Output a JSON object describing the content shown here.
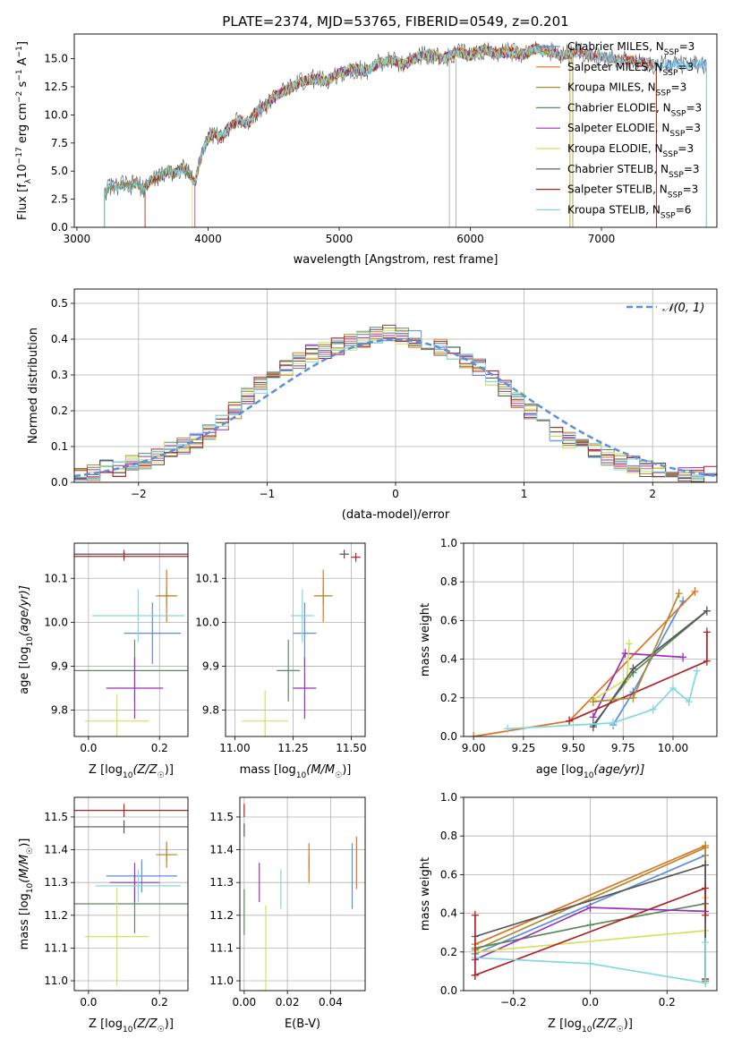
{
  "title": "PLATE=2374, MJD=53765, FIBERID=0549, z=0.201",
  "models": [
    {
      "name": "Chabrier MILES, N",
      "sub": "SSP",
      "tail": "=3",
      "color": "#5b8ede"
    },
    {
      "name": "Salpeter MILES, N",
      "sub": "SSP",
      "tail": "=3",
      "color": "#e1711d"
    },
    {
      "name": "Kroupa MILES, N",
      "sub": "SSP",
      "tail": "=3",
      "color": "#b08a2e"
    },
    {
      "name": "Chabrier ELODIE, N",
      "sub": "SSP",
      "tail": "=3",
      "color": "#5a8a5a"
    },
    {
      "name": "Salpeter ELODIE, N",
      "sub": "SSP",
      "tail": "=3",
      "color": "#9b30b8"
    },
    {
      "name": "Kroupa ELODIE, N",
      "sub": "SSP",
      "tail": "=3",
      "color": "#d4e157"
    },
    {
      "name": "Chabrier STELIB, N",
      "sub": "SSP",
      "tail": "=3",
      "color": "#555555"
    },
    {
      "name": "Salpeter STELIB, N",
      "sub": "SSP",
      "tail": "=3",
      "color": "#b22222"
    },
    {
      "name": "Kroupa STELIB, N",
      "sub": "SSP",
      "tail": "=6",
      "color": "#80d8e0"
    }
  ],
  "chart_data": [
    {
      "id": "spectrum",
      "type": "line",
      "xlabel": "wavelength [Angstrom, rest frame]",
      "ylabel_main": "Flux [f",
      "ylabel_sub": "λ",
      "ylabel_rest": "10",
      "ylabel_sup1": "−17",
      "ylabel_mid": " erg cm",
      "ylabel_sup2": "−2",
      "ylabel_mid2": " s",
      "ylabel_sup3": "−1",
      "ylabel_mid3": " A",
      "ylabel_sup4": "−1",
      "ylabel_end": "]",
      "xlim": [
        2980,
        7880
      ],
      "ylim": [
        0,
        17.2
      ],
      "xticks": [
        3000,
        4000,
        5000,
        6000,
        7000
      ],
      "yticks": [
        0.0,
        2.5,
        5.0,
        7.5,
        10.0,
        12.5,
        15.0
      ],
      "ytick_labels": [
        "0.0",
        "2.5",
        "5.0",
        "7.5",
        "10.0",
        "12.5",
        "15.0"
      ],
      "x": [
        3210,
        3250,
        3300,
        3350,
        3400,
        3450,
        3500,
        3550,
        3600,
        3650,
        3700,
        3750,
        3800,
        3850,
        3900,
        3950,
        4000,
        4050,
        4100,
        4150,
        4200,
        4250,
        4300,
        4350,
        4400,
        4450,
        4500,
        4600,
        4700,
        4800,
        4900,
        5000,
        5100,
        5200,
        5300,
        5400,
        5500,
        5600,
        5700,
        5800,
        5900,
        6000,
        6100,
        6200,
        6300,
        6400,
        6500,
        6600,
        6700,
        6800,
        6900,
        7000,
        7100,
        7200,
        7300,
        7400
      ],
      "y": [
        3.0,
        3.7,
        3.6,
        3.9,
        3.5,
        4.0,
        3.4,
        4.0,
        4.4,
        4.6,
        5.1,
        4.8,
        5.3,
        4.9,
        4.0,
        6.5,
        8.0,
        8.4,
        7.9,
        8.9,
        9.2,
        9.6,
        9.1,
        10.1,
        10.6,
        10.9,
        11.6,
        12.2,
        12.9,
        13.2,
        13.0,
        13.7,
        14.1,
        13.9,
        14.6,
        14.9,
        14.5,
        15.2,
        15.4,
        15.0,
        15.6,
        15.3,
        15.8,
        15.5,
        15.6,
        15.4,
        15.9,
        15.7,
        15.3,
        15.6,
        15.4,
        15.2,
        15.0,
        14.9,
        14.7,
        14.5
      ],
      "starts": [
        3210,
        3210,
        3520,
        3210,
        3900,
        3880,
        3210,
        3520,
        3210
      ],
      "ends": [
        7800,
        7420,
        6760,
        6780,
        6780,
        6780,
        7800,
        7420,
        7800
      ]
    },
    {
      "id": "residuals",
      "type": "bar",
      "xlabel": "(data-model)/error",
      "ylabel": "Normed distribution",
      "legend_label": "𝒩(0, 1)",
      "xlim": [
        -2.5,
        2.5
      ],
      "ylim": [
        0,
        0.54
      ],
      "xticks": [
        -2,
        -1,
        0,
        1,
        2
      ],
      "xtick_labels": [
        "−2",
        "−1",
        "0",
        "1",
        "2"
      ],
      "yticks": [
        0.0,
        0.1,
        0.2,
        0.3,
        0.4,
        0.5
      ],
      "ytick_labels": [
        "0.0",
        "0.1",
        "0.2",
        "0.3",
        "0.4",
        "0.5"
      ],
      "bin_width": 0.1,
      "values": [
        0.02,
        0.03,
        0.04,
        0.04,
        0.05,
        0.06,
        0.07,
        0.09,
        0.1,
        0.12,
        0.14,
        0.17,
        0.2,
        0.24,
        0.27,
        0.29,
        0.32,
        0.34,
        0.36,
        0.37,
        0.38,
        0.39,
        0.4,
        0.41,
        0.42,
        0.41,
        0.4,
        0.39,
        0.38,
        0.36,
        0.34,
        0.32,
        0.29,
        0.26,
        0.23,
        0.2,
        0.17,
        0.14,
        0.12,
        0.1,
        0.09,
        0.07,
        0.06,
        0.05,
        0.04,
        0.03,
        0.03,
        0.02,
        0.02,
        0.02
      ]
    },
    {
      "id": "age_vs_Z",
      "type": "scatter",
      "xlabel_main": "Z [log",
      "xlabel_sub": "10",
      "xlabel_end": "(Z/Z",
      "xlabel_sun_sub": "☉",
      "xlabel_close": ")]",
      "ylabel_main": "age  [log",
      "ylabel_sub": "10",
      "ylabel_end": "(age/yr)]",
      "xlim": [
        -0.04,
        0.28
      ],
      "ylim": [
        9.74,
        10.18
      ],
      "xticks": [
        0.0,
        0.2
      ],
      "xtick_labels": [
        "0.0",
        "0.2"
      ],
      "yticks": [
        9.8,
        9.9,
        10.0,
        10.1
      ],
      "ytick_labels": [
        "9.8",
        "9.9",
        "10.0",
        "10.1"
      ],
      "points": [
        {
          "m": 0,
          "x": 0.18,
          "y": 9.975,
          "xerr": 0.08,
          "yerr": 0.07
        },
        {
          "m": 1,
          "x": 0.22,
          "y": 10.06,
          "xerr": 0.03,
          "yerr": 0.06
        },
        {
          "m": 2,
          "x": 0.22,
          "y": 10.06,
          "xerr": 0.02,
          "yerr": 0.02
        },
        {
          "m": 3,
          "x": 0.13,
          "y": 9.89,
          "xerr": 0.2,
          "yerr": 0.07
        },
        {
          "m": 4,
          "x": 0.13,
          "y": 9.85,
          "xerr": 0.08,
          "yerr": 0.07
        },
        {
          "m": 5,
          "x": 0.08,
          "y": 9.775,
          "xerr": 0.09,
          "yerr": 0.06
        },
        {
          "m": 6,
          "x": 0.1,
          "y": 10.155,
          "xerr": 0.21,
          "yerr": 0.01
        },
        {
          "m": 7,
          "x": 0.1,
          "y": 10.15,
          "xerr": 0.2,
          "yerr": 0.01
        },
        {
          "m": 8,
          "x": 0.14,
          "y": 10.015,
          "xerr": 0.13,
          "yerr": 0.06
        }
      ]
    },
    {
      "id": "age_vs_mass",
      "type": "scatter",
      "xlabel_main": "mass [log",
      "xlabel_sub": "10",
      "xlabel_end": "(M/M",
      "xlabel_sun_sub": "☉",
      "xlabel_close": ")]",
      "xlim": [
        10.96,
        11.56
      ],
      "ylim": [
        9.74,
        10.18
      ],
      "xticks": [
        11.0,
        11.25,
        11.5
      ],
      "xtick_labels": [
        "11.00",
        "11.25",
        "11.50"
      ],
      "yticks": [
        9.8,
        9.9,
        10.0,
        10.1
      ],
      "ytick_labels": [
        "9.8",
        "9.9",
        "10.0",
        "10.1"
      ],
      "points": [
        {
          "m": 0,
          "x": 11.3,
          "y": 9.975,
          "xerr": 0.05,
          "yerr": 0.07
        },
        {
          "m": 1,
          "x": 11.38,
          "y": 10.06,
          "xerr": 0.04,
          "yerr": 0.06
        },
        {
          "m": 2,
          "x": 11.38,
          "y": 10.06,
          "xerr": 0.02,
          "yerr": 0.02
        },
        {
          "m": 3,
          "x": 11.23,
          "y": 9.89,
          "xerr": 0.05,
          "yerr": 0.07
        },
        {
          "m": 4,
          "x": 11.3,
          "y": 9.85,
          "xerr": 0.05,
          "yerr": 0.07
        },
        {
          "m": 5,
          "x": 11.13,
          "y": 9.775,
          "xerr": 0.1,
          "yerr": 0.07
        },
        {
          "m": 6,
          "x": 11.47,
          "y": 10.155,
          "xerr": 0.02,
          "yerr": 0.01
        },
        {
          "m": 7,
          "x": 11.52,
          "y": 10.148,
          "xerr": 0.02,
          "yerr": 0.01
        },
        {
          "m": 8,
          "x": 11.29,
          "y": 10.015,
          "xerr": 0.05,
          "yerr": 0.06
        }
      ]
    },
    {
      "id": "weight_vs_age",
      "type": "line",
      "xlabel_main": "age  [log",
      "xlabel_sub": "10",
      "xlabel_end": "(age/yr)]",
      "ylabel": "mass weight",
      "xlim": [
        8.95,
        10.22
      ],
      "ylim": [
        0,
        1.0
      ],
      "xticks": [
        9.0,
        9.25,
        9.5,
        9.75,
        10.0
      ],
      "xtick_labels": [
        "9.00",
        "9.25",
        "9.50",
        "9.75",
        "10.00"
      ],
      "yticks": [
        0.0,
        0.2,
        0.4,
        0.6,
        0.8,
        1.0
      ],
      "ytick_labels": [
        "0.0",
        "0.2",
        "0.4",
        "0.6",
        "0.8",
        "1.0"
      ],
      "series": [
        {
          "m": 0,
          "x": [
            9.7,
            9.8,
            10.05
          ],
          "y": [
            0.06,
            0.23,
            0.7
          ]
        },
        {
          "m": 1,
          "x": [
            9.0,
            9.48,
            10.11
          ],
          "y": [
            0.0,
            0.08,
            0.75
          ]
        },
        {
          "m": 3,
          "x": [
            9.6,
            9.8,
            10.17
          ],
          "y": [
            0.06,
            0.33,
            0.65
          ]
        },
        {
          "m": 4,
          "x": [
            9.6,
            9.76,
            10.05
          ],
          "y": [
            0.1,
            0.43,
            0.41
          ]
        },
        {
          "m": 5,
          "x": [
            9.6,
            9.77,
            9.78
          ],
          "y": [
            0.19,
            0.3,
            0.48
          ]
        },
        {
          "m": 6,
          "x": [
            9.6,
            9.8,
            10.17
          ],
          "y": [
            0.05,
            0.35,
            0.65
          ]
        },
        {
          "m": 7,
          "x": [
            9.48,
            10.17,
            10.17
          ],
          "y": [
            0.08,
            0.39,
            0.54
          ]
        },
        {
          "m": 8,
          "x": [
            9.17,
            9.7,
            9.9,
            10.0,
            10.08,
            10.12
          ],
          "y": [
            0.04,
            0.07,
            0.14,
            0.25,
            0.18,
            0.34
          ]
        },
        {
          "m": 2,
          "x": [
            9.6,
            9.8,
            10.03
          ],
          "y": [
            0.18,
            0.2,
            0.74
          ]
        }
      ]
    },
    {
      "id": "mass_vs_Z",
      "type": "scatter",
      "xlabel_main": "Z [log",
      "xlabel_sub": "10",
      "xlabel_end": "(Z/Z",
      "xlabel_sun_sub": "☉",
      "xlabel_close": ")]",
      "ylabel_main": "mass [log",
      "ylabel_sub": "10",
      "ylabel_end": "(M/M",
      "ylabel_sun_sub": "☉",
      "ylabel_close": ")]",
      "xlim": [
        -0.04,
        0.28
      ],
      "ylim": [
        10.97,
        11.56
      ],
      "xticks": [
        0.0,
        0.2
      ],
      "xtick_labels": [
        "0.0",
        "0.2"
      ],
      "yticks": [
        11.0,
        11.1,
        11.2,
        11.3,
        11.4,
        11.5
      ],
      "ytick_labels": [
        "11.0",
        "11.1",
        "11.2",
        "11.3",
        "11.4",
        "11.5"
      ],
      "points": [
        {
          "m": 0,
          "x": 0.15,
          "y": 11.32,
          "xerr": 0.1,
          "yerr": 0.05
        },
        {
          "m": 1,
          "x": 0.22,
          "y": 11.385,
          "xerr": 0.03,
          "yerr": 0.04
        },
        {
          "m": 2,
          "x": 0.22,
          "y": 11.385,
          "xerr": 0.02,
          "yerr": 0.02
        },
        {
          "m": 3,
          "x": 0.13,
          "y": 11.235,
          "xerr": 0.2,
          "yerr": 0.09
        },
        {
          "m": 4,
          "x": 0.13,
          "y": 11.3,
          "xerr": 0.07,
          "yerr": 0.06
        },
        {
          "m": 5,
          "x": 0.08,
          "y": 11.135,
          "xerr": 0.09,
          "yerr": 0.15
        },
        {
          "m": 6,
          "x": 0.1,
          "y": 11.47,
          "xerr": 0.22,
          "yerr": 0.02
        },
        {
          "m": 7,
          "x": 0.1,
          "y": 11.52,
          "xerr": 0.2,
          "yerr": 0.02
        },
        {
          "m": 8,
          "x": 0.14,
          "y": 11.29,
          "xerr": 0.12,
          "yerr": 0.05
        }
      ]
    },
    {
      "id": "mass_vs_ebv",
      "type": "scatter",
      "xlabel": "E(B-V)",
      "xlim": [
        -0.002,
        0.056
      ],
      "ylim": [
        10.97,
        11.56
      ],
      "xticks": [
        0.0,
        0.02,
        0.04
      ],
      "xtick_labels": [
        "0.00",
        "0.02",
        "0.04"
      ],
      "yticks": [
        11.0,
        11.1,
        11.2,
        11.3,
        11.4,
        11.5
      ],
      "ytick_labels": [
        "11.0",
        "11.1",
        "11.2",
        "11.3",
        "11.4",
        "11.5"
      ],
      "points": [
        {
          "m": 0,
          "x": 0.05,
          "y": 11.32,
          "xerr": 0,
          "yerr": 0.1
        },
        {
          "m": 1,
          "x": 0.03,
          "y": 11.36,
          "xerr": 0,
          "yerr": 0.06
        },
        {
          "m": 2,
          "x": 0.03,
          "y": 11.36,
          "xerr": 0,
          "yerr": 0.02
        },
        {
          "m": 3,
          "x": 0.0,
          "y": 11.21,
          "xerr": 0,
          "yerr": 0.07
        },
        {
          "m": 4,
          "x": 0.007,
          "y": 11.3,
          "xerr": 0,
          "yerr": 0.06
        },
        {
          "m": 5,
          "x": 0.01,
          "y": 11.1,
          "xerr": 0,
          "yerr": 0.13
        },
        {
          "m": 6,
          "x": 0.0,
          "y": 11.46,
          "xerr": 0,
          "yerr": 0.02
        },
        {
          "m": 7,
          "x": 0.0,
          "y": 11.52,
          "xerr": 0,
          "yerr": 0.02
        },
        {
          "m": 8,
          "x": 0.017,
          "y": 11.28,
          "xerr": 0,
          "yerr": 0.06
        },
        {
          "m": 1,
          "x": 0.052,
          "y": 11.36,
          "xerr": 0,
          "yerr": 0.08
        }
      ]
    },
    {
      "id": "weight_vs_Z",
      "type": "line",
      "xlabel_main": "Z [log",
      "xlabel_sub": "10",
      "xlabel_end": "(Z/Z",
      "xlabel_sun_sub": "☉",
      "xlabel_close": ")]",
      "ylabel": "mass weight",
      "xlim": [
        -0.33,
        0.33
      ],
      "ylim": [
        0,
        1.0
      ],
      "xticks": [
        -0.2,
        0.0,
        0.2
      ],
      "xtick_labels": [
        "−0.2",
        "0.0",
        "0.2"
      ],
      "yticks": [
        0.0,
        0.2,
        0.4,
        0.6,
        0.8,
        1.0
      ],
      "ytick_labels": [
        "0.0",
        "0.2",
        "0.4",
        "0.6",
        "0.8",
        "1.0"
      ],
      "series": [
        {
          "m": 0,
          "x": [
            -0.3,
            0.3,
            0.3
          ],
          "y": [
            0.19,
            0.7,
            0.05
          ]
        },
        {
          "m": 1,
          "x": [
            -0.3,
            0.3,
            0.3
          ],
          "y": [
            0.24,
            0.75,
            0.06
          ]
        },
        {
          "m": 2,
          "x": [
            -0.3,
            0.3,
            0.3
          ],
          "y": [
            0.21,
            0.74,
            0.05
          ]
        },
        {
          "m": 3,
          "x": [
            -0.3,
            0.0,
            0.3
          ],
          "y": [
            0.22,
            0.34,
            0.45
          ]
        },
        {
          "m": 4,
          "x": [
            -0.3,
            0.0,
            0.3
          ],
          "y": [
            0.16,
            0.43,
            0.41
          ]
        },
        {
          "m": 5,
          "x": [
            -0.3,
            0.3,
            0.3
          ],
          "y": [
            0.2,
            0.31,
            0.48
          ]
        },
        {
          "m": 6,
          "x": [
            -0.3,
            0.3,
            0.3
          ],
          "y": [
            0.28,
            0.65,
            0.06
          ]
        },
        {
          "m": 7,
          "x": [
            -0.3,
            0.3,
            0.3
          ],
          "y": [
            0.08,
            0.53,
            0.39
          ]
        },
        {
          "m": 8,
          "x": [
            -0.3,
            0.0,
            0.3,
            0.3
          ],
          "y": [
            0.17,
            0.14,
            0.04,
            0.25
          ]
        },
        {
          "m": 7,
          "x": [
            -0.3,
            -0.3
          ],
          "y": [
            0.08,
            0.39
          ]
        }
      ]
    }
  ]
}
